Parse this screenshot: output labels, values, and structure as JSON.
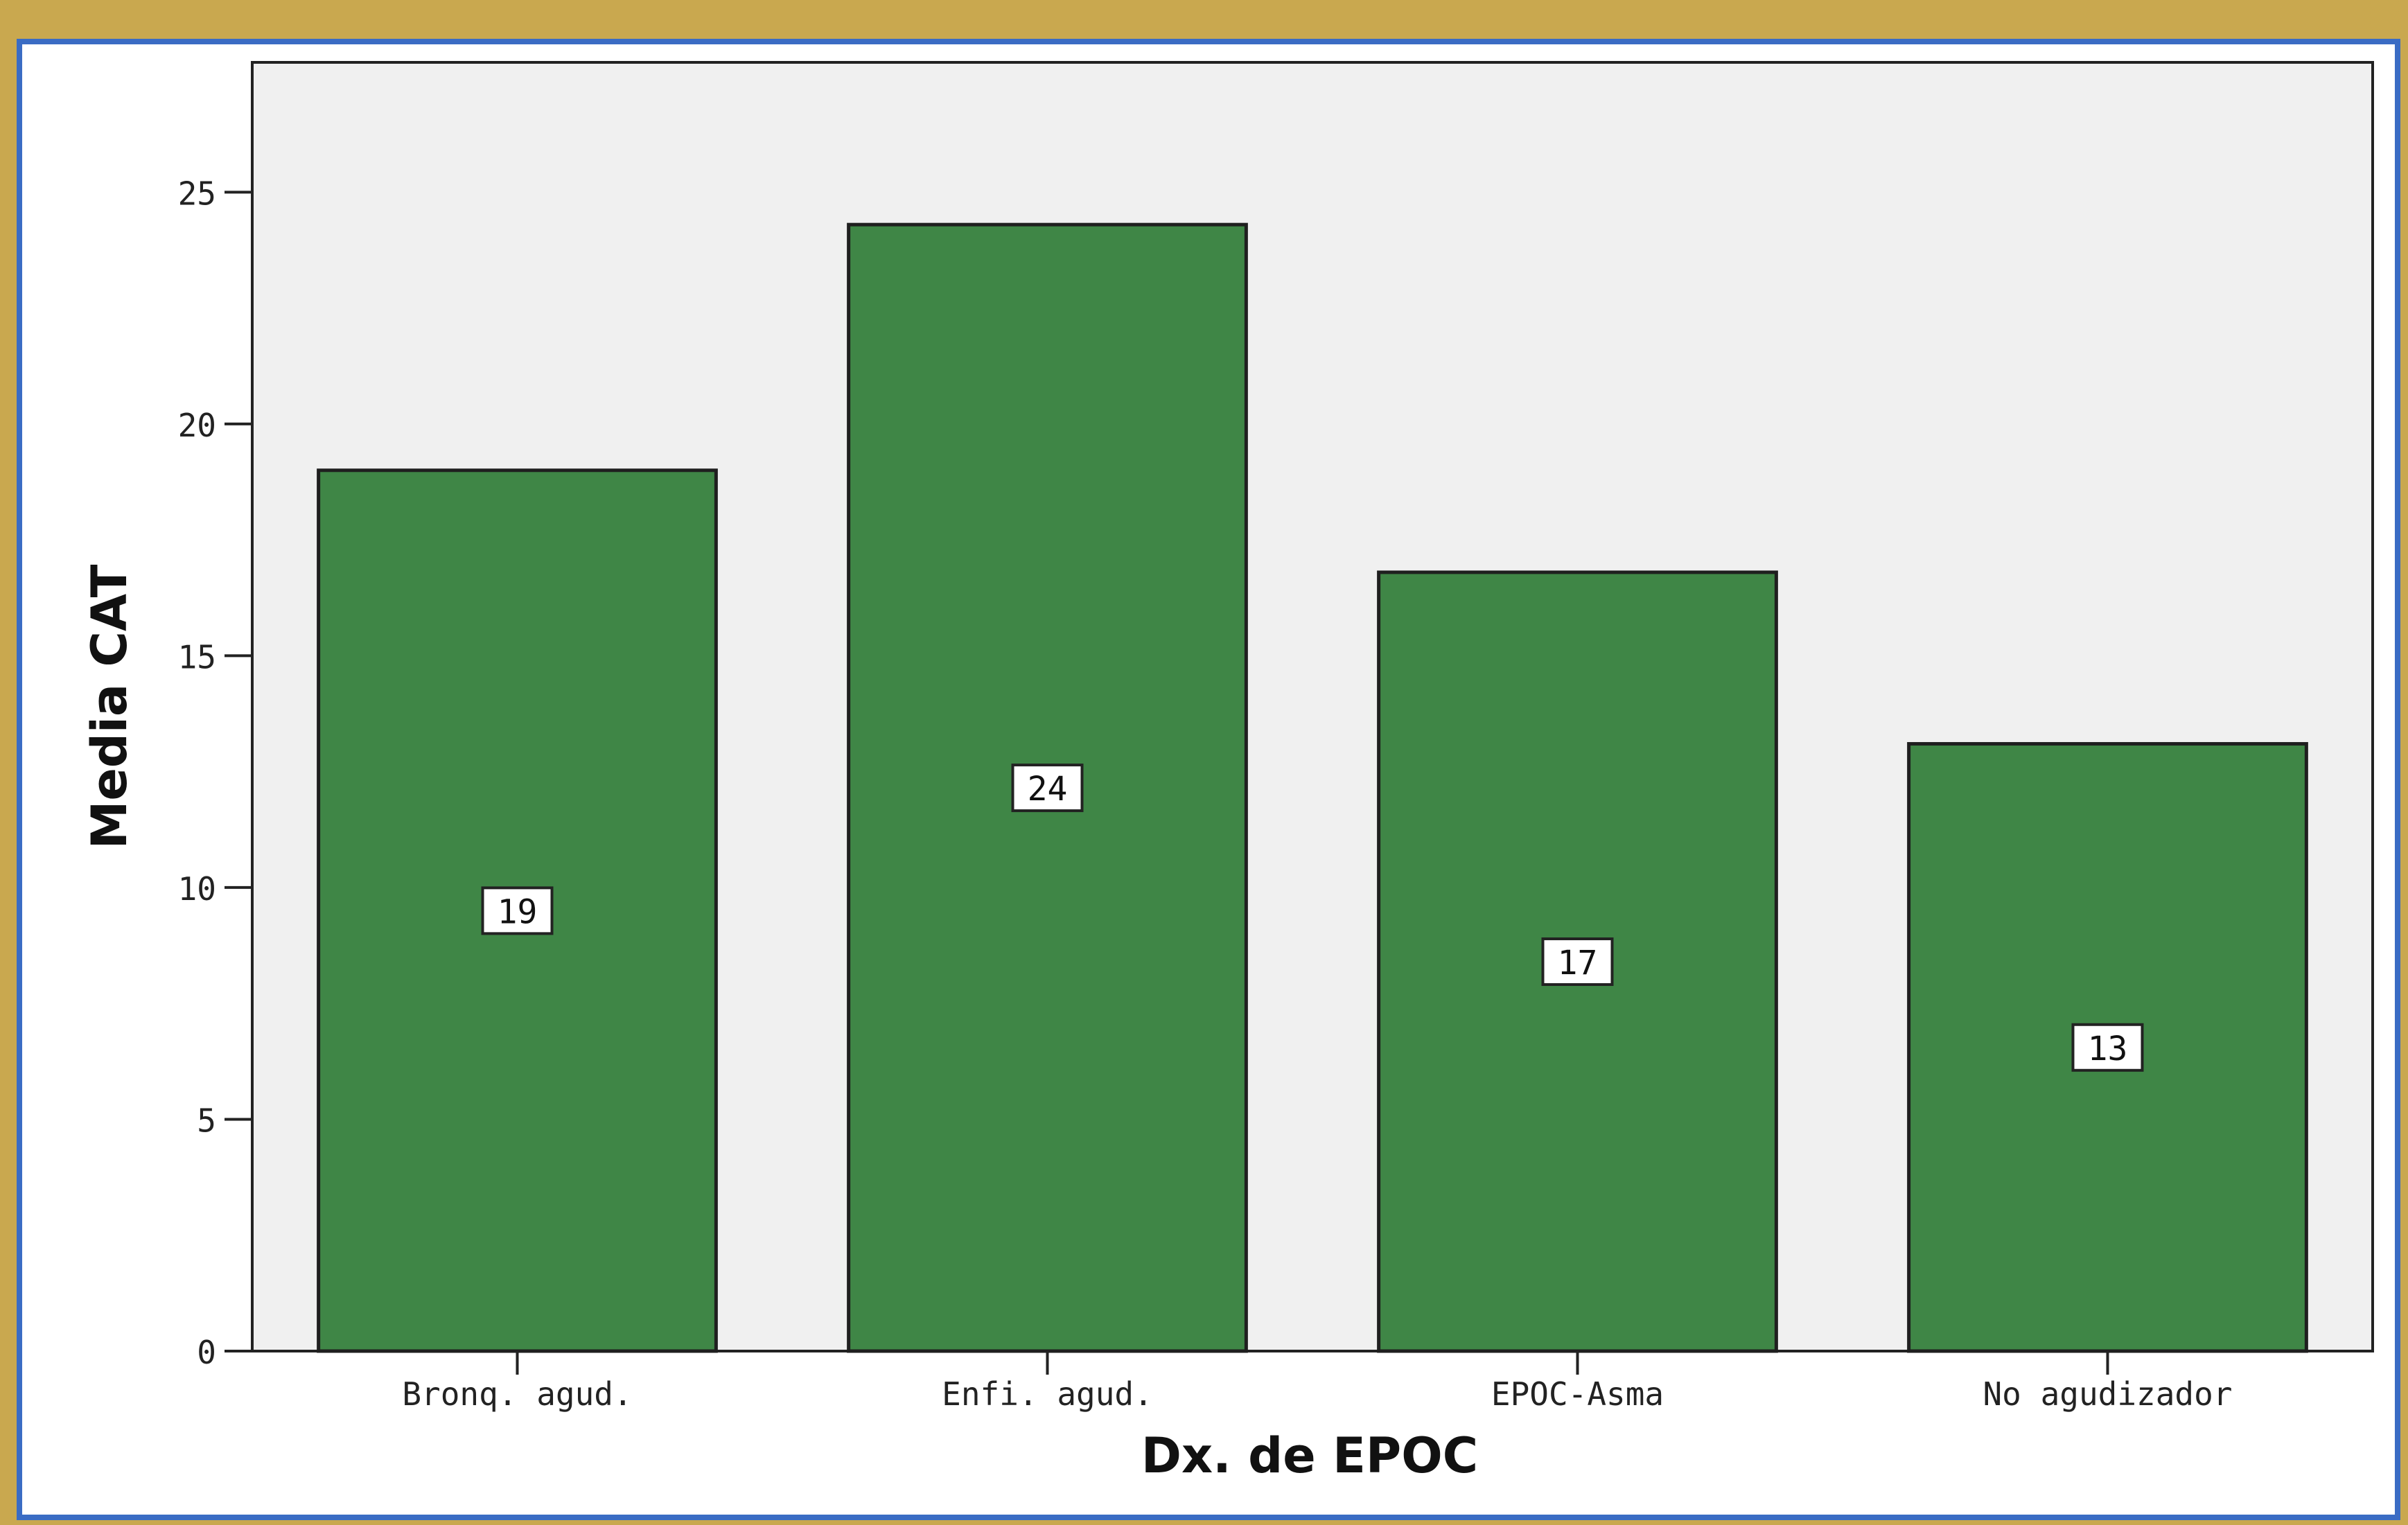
{
  "colors": {
    "outer_frame": "#c9a84f",
    "inner_border": "#3a6cc4",
    "panel_background": "#ffffff",
    "plot_background": "#f0f0f0",
    "bar_fill": "#3f8646",
    "bar_stroke": "#1f1f1f"
  },
  "chart_data": {
    "type": "bar",
    "title": "",
    "xlabel": "Dx. de EPOC",
    "ylabel": "Media CAT",
    "categories": [
      "Bronq. agud.",
      "Enfi. agud.",
      "EPOC-Asma",
      "No agudizador"
    ],
    "values": [
      19,
      24.3,
      16.8,
      13.1
    ],
    "data_labels": [
      "19",
      "24",
      "17",
      "13"
    ],
    "ylim": [
      0,
      27.8
    ],
    "yticks": [
      0,
      5,
      10,
      15,
      20,
      25
    ],
    "grid": false,
    "legend": "none"
  }
}
